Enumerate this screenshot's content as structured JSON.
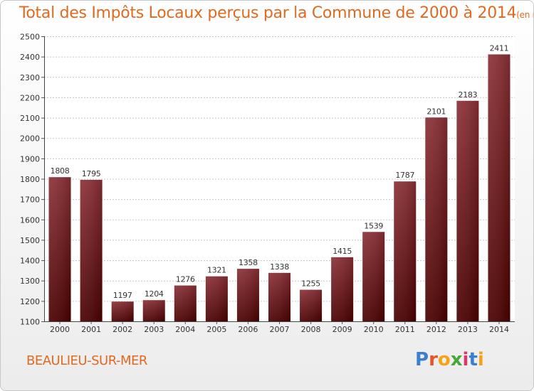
{
  "title": "Total des Impôts Locaux perçus par la Commune de 2000 à 2014",
  "unit": "(en milliers d'€)",
  "commune": "BEAULIEU-SUR-MER",
  "logo": {
    "text": "Proxiti",
    "letter_colors": [
      "#3a7fd0",
      "#e8542a",
      "#f4a21a",
      "#49a63a",
      "#d93a6a",
      "#3a7fd0",
      "#f4a21a"
    ]
  },
  "colors": {
    "accent": "#e06a20",
    "bar_top": "#8b3036",
    "bar_bottom": "#4a0000"
  },
  "chart_data": {
    "type": "bar",
    "categories": [
      "2000",
      "2001",
      "2002",
      "2003",
      "2004",
      "2005",
      "2006",
      "2007",
      "2008",
      "2009",
      "2010",
      "2011",
      "2012",
      "2013",
      "2014"
    ],
    "values": [
      1808,
      1795,
      1197,
      1204,
      1276,
      1321,
      1358,
      1338,
      1255,
      1415,
      1539,
      1787,
      2101,
      2183,
      2411
    ],
    "ylim": [
      1100,
      2500
    ],
    "yticks": [
      1100,
      1200,
      1300,
      1400,
      1500,
      1600,
      1700,
      1800,
      1900,
      2000,
      2100,
      2200,
      2300,
      2400,
      2500
    ],
    "grid": true,
    "data_labels": true
  }
}
